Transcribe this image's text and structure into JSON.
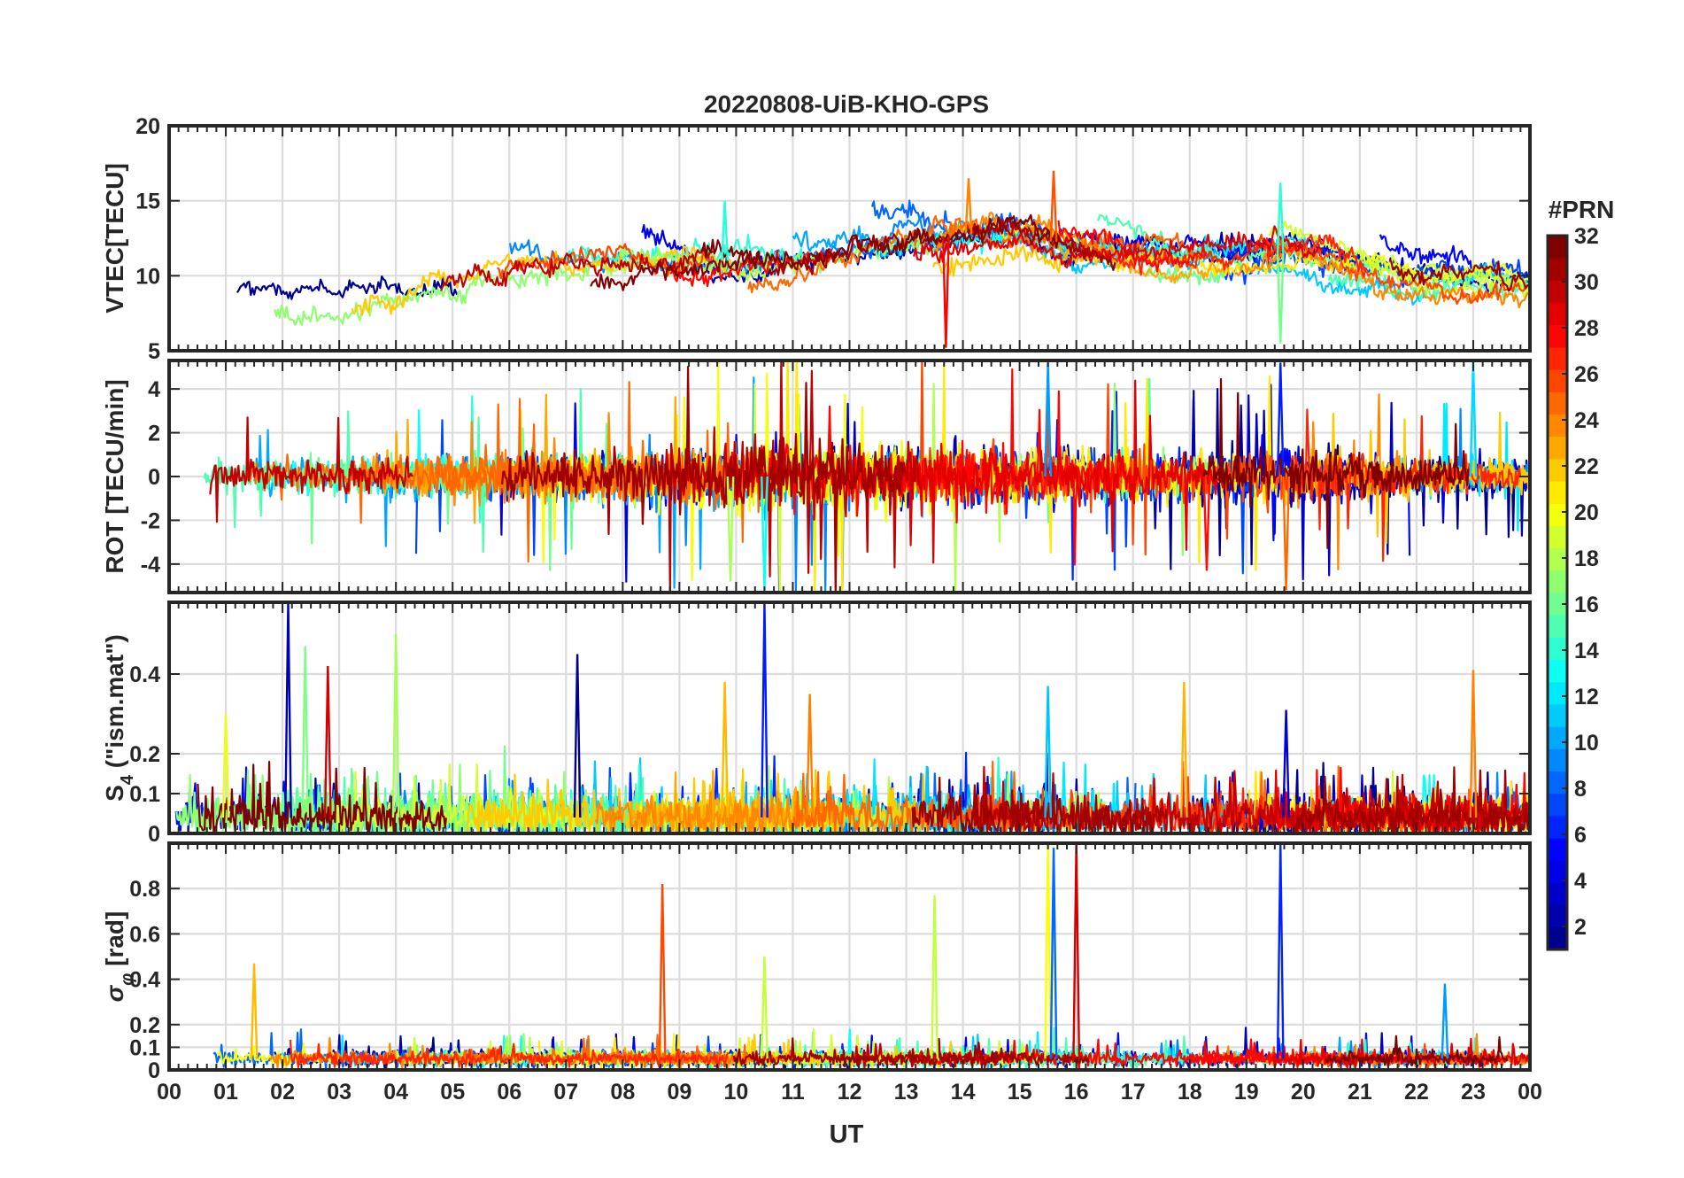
{
  "chart_data": {
    "title": "20220808-UiB-KHO-GPS",
    "xlabel": "UT",
    "x_ticks": [
      "00",
      "01",
      "02",
      "03",
      "04",
      "05",
      "06",
      "07",
      "08",
      "09",
      "10",
      "11",
      "12",
      "13",
      "14",
      "15",
      "16",
      "17",
      "18",
      "19",
      "20",
      "21",
      "22",
      "23",
      "00"
    ],
    "x_range": [
      0,
      24
    ],
    "colorbar": {
      "label": "#PRN",
      "range": [
        1,
        32
      ],
      "ticks": [
        2,
        4,
        6,
        8,
        10,
        12,
        14,
        16,
        18,
        20,
        22,
        24,
        26,
        28,
        30,
        32
      ],
      "colormap": "jet",
      "colormap_stops": [
        "#00008f",
        "#0000ff",
        "#00ffff",
        "#ffff00",
        "#ff0000",
        "#800000"
      ]
    },
    "panels": [
      {
        "type": "line",
        "ylabel": "VTEC[TECU]",
        "ylim": [
          5,
          20
        ],
        "y_ticks": [
          "5",
          "10",
          "15",
          "20"
        ],
        "grid": true,
        "description_values": {
          "baseline": [
            [
              0,
              9
            ],
            [
              2,
              8.8
            ],
            [
              4,
              9.5
            ],
            [
              6,
              10.5
            ],
            [
              8,
              11
            ],
            [
              10,
              11
            ],
            [
              12,
              11.8
            ],
            [
              14,
              12.8
            ],
            [
              15,
              13
            ],
            [
              16,
              11.8
            ],
            [
              18,
              11.2
            ],
            [
              20,
              11.5
            ],
            [
              22,
              9.5
            ],
            [
              24,
              9.5
            ]
          ],
          "spikes": [
            [
              9.8,
              15
            ],
            [
              14.1,
              16.5
            ],
            [
              15.6,
              17
            ],
            [
              19.6,
              16.2
            ],
            [
              13.7,
              5.2
            ],
            [
              19.6,
              5.5
            ]
          ]
        }
      },
      {
        "type": "line",
        "ylabel": "ROT [TECU/min]",
        "ylim": [
          -5.3,
          5.3
        ],
        "y_ticks": [
          "-4",
          "-2",
          "0",
          "2",
          "4"
        ],
        "grid": true,
        "description_values": {
          "envelope": [
            [
              0,
              0.7
            ],
            [
              2,
              0.8
            ],
            [
              4,
              0.9
            ],
            [
              6,
              1.0
            ],
            [
              8,
              1.2
            ],
            [
              10,
              1.6
            ],
            [
              12,
              1.4
            ],
            [
              14,
              1.4
            ],
            [
              16,
              1.2
            ],
            [
              18,
              1.1
            ],
            [
              20,
              1.2
            ],
            [
              22,
              0.9
            ],
            [
              24,
              0.7
            ]
          ],
          "spikes": [
            [
              10.5,
              -5.2
            ],
            [
              15.5,
              5.2
            ],
            [
              19.6,
              5.2
            ],
            [
              19.7,
              -5.2
            ],
            [
              23,
              5.2
            ],
            [
              18.3,
              -4.3
            ],
            [
              9.9,
              -4.8
            ]
          ]
        }
      },
      {
        "type": "line",
        "ylabel": "S4 (\"ism.mat\")",
        "ylabel_main": "S",
        "ylabel_sub": "4",
        "ylabel_rest": " (\"ism.mat\")",
        "ylim": [
          0,
          0.58
        ],
        "y_ticks": [
          "0",
          "0.1",
          "0.2",
          "0.4"
        ],
        "grid": true,
        "description_values": {
          "baseline": 0.04,
          "spikes": [
            [
              2.1,
              0.58
            ],
            [
              2.4,
              0.47
            ],
            [
              2.8,
              0.42
            ],
            [
              4.0,
              0.5
            ],
            [
              7.2,
              0.45
            ],
            [
              10.5,
              0.58
            ],
            [
              11.3,
              0.35
            ],
            [
              15.5,
              0.37
            ],
            [
              17.9,
              0.38
            ],
            [
              19.7,
              0.31
            ],
            [
              23.0,
              0.41
            ],
            [
              1.0,
              0.3
            ],
            [
              9.8,
              0.38
            ]
          ]
        }
      },
      {
        "type": "line",
        "ylabel": "σφ [rad]",
        "ylabel_main": "σ",
        "ylabel_sub": "φ",
        "ylabel_rest": " [rad]",
        "ylim": [
          0,
          1.0
        ],
        "y_ticks": [
          "0",
          "0.1",
          "0.2",
          "0.4",
          "0.6",
          "0.8"
        ],
        "grid": true,
        "description_values": {
          "baseline": 0.05,
          "spikes": [
            [
              1.5,
              0.47
            ],
            [
              8.7,
              0.82
            ],
            [
              10.5,
              0.5
            ],
            [
              13.5,
              0.77
            ],
            [
              15.5,
              1.0
            ],
            [
              15.6,
              0.98
            ],
            [
              16.0,
              1.0
            ],
            [
              19.6,
              1.0
            ],
            [
              22.5,
              0.38
            ]
          ]
        }
      }
    ]
  }
}
